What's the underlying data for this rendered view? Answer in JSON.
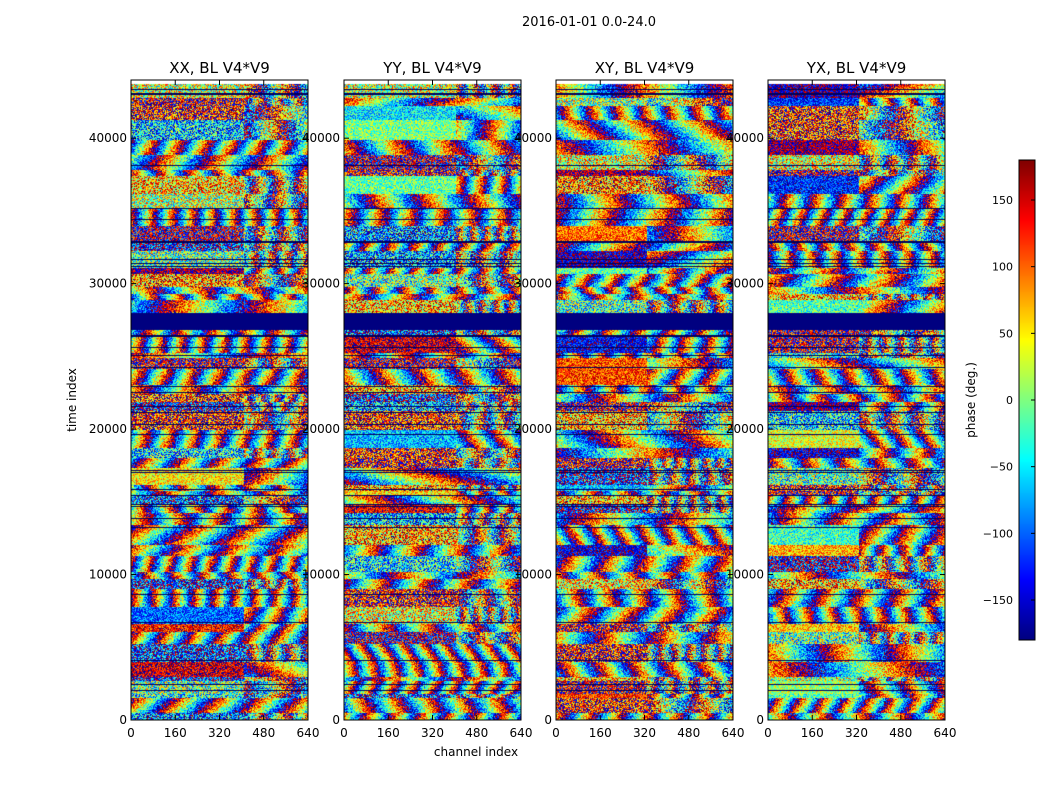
{
  "chart_data": {
    "type": "heatmap",
    "suptitle": "2016-01-01 0.0-24.0",
    "xlabel": "channel index",
    "ylabel": "time index",
    "xlim": [
      0,
      640
    ],
    "ylim": [
      0,
      44000
    ],
    "xticks": [
      0,
      160,
      320,
      480,
      640
    ],
    "yticks": [
      0,
      10000,
      20000,
      30000,
      40000
    ],
    "panels": [
      {
        "title": "XX, BL V4*V9",
        "pol": "XX",
        "split_channel": 408
      },
      {
        "title": "YY, BL V4*V9",
        "pol": "YY",
        "split_channel": 405
      },
      {
        "title": "XY, BL V4*V9",
        "pol": "XY",
        "split_channel": 330
      },
      {
        "title": "YX, BL V4*V9",
        "pol": "YX",
        "split_channel": 330
      }
    ],
    "flagged_time_ranges": [
      [
        26800,
        28000
      ]
    ],
    "colorbar": {
      "label": "phase (deg.)",
      "vmin": -180,
      "vmax": 180,
      "ticks": [
        150,
        100,
        50,
        0,
        -50,
        -100,
        -150
      ],
      "tick_labels": [
        "150",
        "100",
        "50",
        "0",
        "−50",
        "−100",
        "−150"
      ],
      "colormap": "jet"
    }
  }
}
